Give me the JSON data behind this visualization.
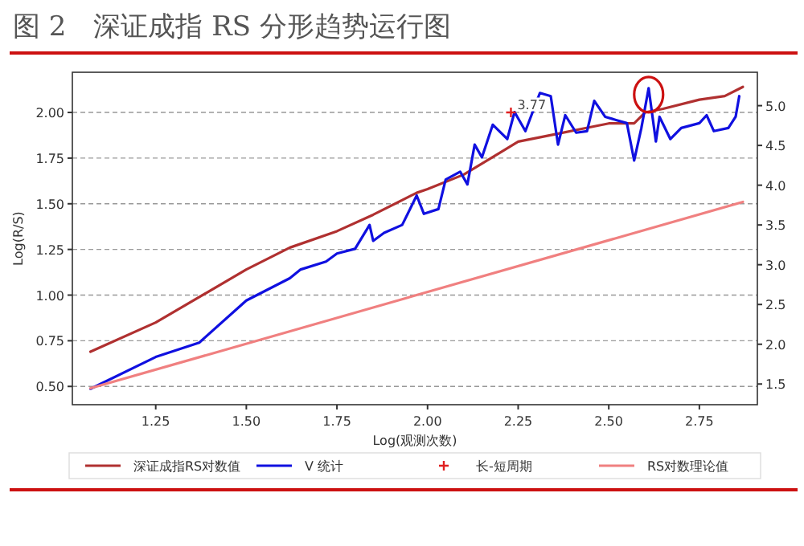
{
  "chart_data": {
    "type": "line",
    "title": "图 2　深证成指 RS 分形趋势运行图",
    "xlabel": "Log(观测次数)",
    "ylabel": "Log(R/S)",
    "xlim": [
      1.02,
      2.91
    ],
    "xticks": [
      1.25,
      {
        "value": 1.5,
        "label": "1.50"
      },
      1.75,
      {
        "value": 2.0,
        "label": "2.00"
      },
      2.25,
      {
        "value": 2.5,
        "label": "2.50"
      },
      2.75
    ],
    "ylim": [
      0.4,
      2.22
    ],
    "yticks": [
      {
        "value": 0.5,
        "label": "0.50"
      },
      0.75,
      {
        "value": 1.0,
        "label": "1.00"
      },
      1.25,
      {
        "value": 1.5,
        "label": "1.50"
      },
      1.75,
      {
        "value": 2.0,
        "label": "2.00"
      }
    ],
    "y2lim": [
      1.24,
      5.42
    ],
    "y2ticks": [
      1.5,
      {
        "value": 2.0,
        "label": "2.0"
      },
      2.5,
      {
        "value": 3.0,
        "label": "3.0"
      },
      3.5,
      {
        "value": 4.0,
        "label": "4.0"
      },
      4.5,
      {
        "value": 5.0,
        "label": "5.0"
      }
    ],
    "grid": "y",
    "legend": "bottom",
    "line_style": "solid",
    "series": [
      {
        "name": "深证成指RS对数值",
        "color": "#b03030",
        "x": [
          1.07,
          1.25,
          1.5,
          1.62,
          1.75,
          1.85,
          1.97,
          2.0,
          2.1,
          2.2,
          2.25,
          2.35,
          2.45,
          2.5,
          2.57,
          2.6,
          2.65,
          2.75,
          2.82,
          2.87
        ],
        "values": [
          0.69,
          0.85,
          1.14,
          1.26,
          1.35,
          1.44,
          1.56,
          1.58,
          1.66,
          1.78,
          1.84,
          1.88,
          1.92,
          1.94,
          1.94,
          2.0,
          2.02,
          2.07,
          2.09,
          2.14
        ]
      },
      {
        "name": "V 统计",
        "color": "#1010e0",
        "axis": "y2",
        "x": [
          1.07,
          1.25,
          1.37,
          1.5,
          1.62,
          1.65,
          1.72,
          1.75,
          1.8,
          1.84,
          1.85,
          1.88,
          1.93,
          1.97,
          1.99,
          2.03,
          2.05,
          2.09,
          2.11,
          2.13,
          2.15,
          2.18,
          2.22,
          2.24,
          2.27,
          2.31,
          2.34,
          2.36,
          2.38,
          2.41,
          2.44,
          2.46,
          2.49,
          2.52,
          2.55,
          2.57,
          2.59,
          2.61,
          2.63,
          2.64,
          2.67,
          2.7,
          2.75,
          2.77,
          2.79,
          2.83,
          2.85,
          2.86
        ],
        "values": [
          1.44,
          1.84,
          2.02,
          2.55,
          2.83,
          2.94,
          3.04,
          3.14,
          3.2,
          3.5,
          3.3,
          3.4,
          3.5,
          3.87,
          3.64,
          3.7,
          4.07,
          4.17,
          4.01,
          4.51,
          4.35,
          4.76,
          4.58,
          4.92,
          4.68,
          5.16,
          5.12,
          4.51,
          4.88,
          4.66,
          4.68,
          5.06,
          4.86,
          4.82,
          4.78,
          4.31,
          4.72,
          5.22,
          4.55,
          4.86,
          4.58,
          4.72,
          4.78,
          4.88,
          4.68,
          4.72,
          4.86,
          5.12
        ]
      },
      {
        "name": "长-短周期",
        "color": "#e02020",
        "type": "scatter",
        "marker": "cross",
        "x": [
          2.23
        ],
        "values": [
          2.0
        ]
      },
      {
        "name": "RS对数理论值",
        "color": "#f08080",
        "x": [
          1.07,
          2.87
        ],
        "values": [
          0.49,
          1.51
        ]
      }
    ],
    "annotations": [
      {
        "text": "3.77",
        "x": 2.23,
        "y": 2.0
      }
    ]
  }
}
